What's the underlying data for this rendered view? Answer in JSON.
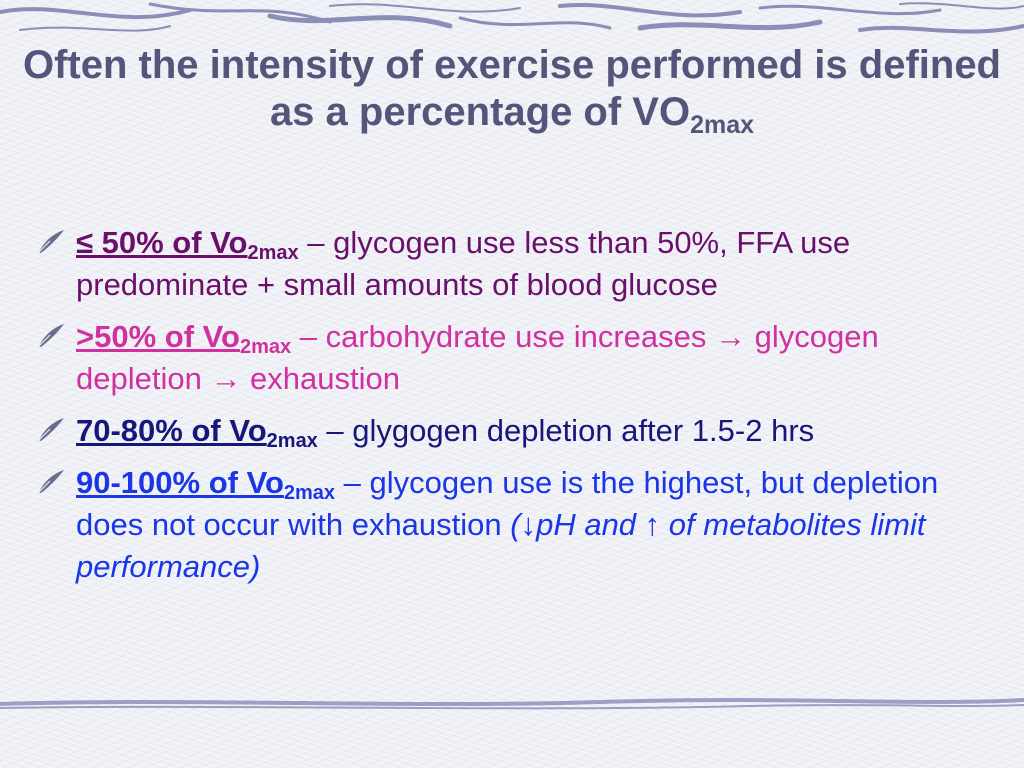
{
  "title": {
    "main": "Often the intensity of exercise performed is defined as a percentage of VO",
    "sub": "2max"
  },
  "bullets": [
    {
      "lead": "≤ 50% of Vo",
      "lead_sub": "2max",
      "text": " – glycogen use less than 50%, FFA use predominate + small amounts of blood glucose",
      "color": "#6a0f6a"
    },
    {
      "lead": ">50% of Vo",
      "lead_sub": "2max",
      "text": " – carbohydrate use increases → glycogen depletion → exhaustion",
      "color": "#d1309f"
    },
    {
      "lead": "70-80% of Vo",
      "lead_sub": "2max",
      "text": " – glygogen depletion after 1.5-2 hrs",
      "color": "#17177a"
    },
    {
      "lead": "90-100% of Vo",
      "lead_sub": "2max",
      "text": " – glycogen use is the highest, but depletion does not occur with exhaustion ",
      "text_italic": "(↓pH and ↑ of metabolites limit performance)",
      "color": "#1b36e4"
    }
  ],
  "marker_icon": "quill-bullet-icon",
  "theme": {
    "title_color": "#55547a",
    "swirl_color": "#5b5f95",
    "background": "#eef0f5"
  }
}
